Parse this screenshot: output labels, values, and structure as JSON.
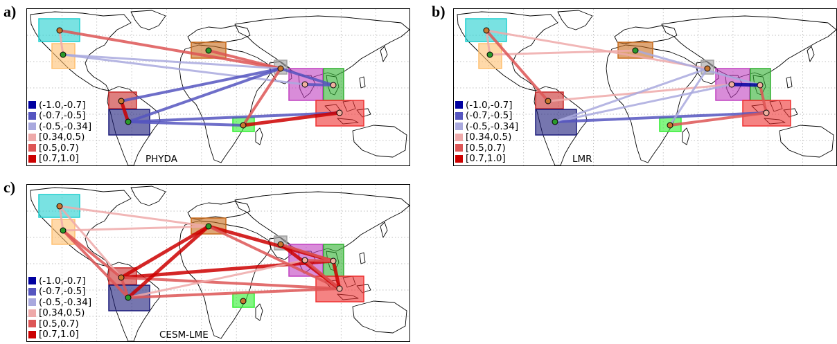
{
  "legend": [
    {
      "label": "(-1.0,-0.7]",
      "color": "#0000a0"
    },
    {
      "label": "(-0.7,-0.5]",
      "color": "#5555c0"
    },
    {
      "label": "(-0.5,-0.34]",
      "color": "#a9a9de"
    },
    {
      "label": "[0.34,0.5)",
      "color": "#eea9a9"
    },
    {
      "label": "[0.5,0.7)",
      "color": "#dd5555"
    },
    {
      "label": "[0.7,1.0]",
      "color": "#cc0000"
    }
  ],
  "regions": {
    "NWAmerica": {
      "fill": "#1fcfcf",
      "dot": "#c87830"
    },
    "SWUS": {
      "fill": "#ffc070",
      "dot": "#2a9a2a"
    },
    "Mediterranean": {
      "fill": "#c86a1a",
      "dot": "#2a9a2a"
    },
    "MiddleEast": {
      "fill": "#a0a0a0",
      "dot": "#c87830"
    },
    "India": {
      "fill": "#c040c0",
      "dot": "#f0b0a0"
    },
    "SEAsia": {
      "fill": "#30b030",
      "dot": "#f0b0a0"
    },
    "Indonesia": {
      "fill": "#ee3030",
      "dot": "#f0b0a0"
    },
    "EastAfrica": {
      "fill": "#30ee30",
      "dot": "#c87830"
    },
    "NSAmerica": {
      "fill": "#c82a2a",
      "dot": "#c87830"
    },
    "Amazon": {
      "fill": "#1a1a7a",
      "dot": "#2a9a2a"
    }
  },
  "panels": [
    {
      "letter": "a)",
      "dataset": "PHYDA",
      "links": [
        [
          "NWAmerica",
          "MiddleEast",
          5
        ],
        [
          "Mediterranean",
          "MiddleEast",
          5
        ],
        [
          "SWUS",
          "MiddleEast",
          3
        ],
        [
          "SWUS",
          "India",
          3
        ],
        [
          "NWAmerica",
          "SWUS",
          4
        ],
        [
          "NSAmerica",
          "Amazon",
          6
        ],
        [
          "Amazon",
          "MiddleEast",
          2
        ],
        [
          "NSAmerica",
          "MiddleEast",
          2
        ],
        [
          "Amazon",
          "Indonesia",
          2
        ],
        [
          "Amazon",
          "EastAfrica",
          2
        ],
        [
          "EastAfrica",
          "Indonesia",
          6
        ],
        [
          "EastAfrica",
          "MiddleEast",
          5
        ],
        [
          "MiddleEast",
          "SEAsia",
          2
        ],
        [
          "India",
          "SEAsia",
          2
        ]
      ]
    },
    {
      "letter": "b)",
      "dataset": "LMR",
      "links": [
        [
          "NWAmerica",
          "SWUS",
          4
        ],
        [
          "NWAmerica",
          "MiddleEast",
          4
        ],
        [
          "SWUS",
          "Mediterranean",
          4
        ],
        [
          "NWAmerica",
          "NSAmerica",
          5
        ],
        [
          "NSAmerica",
          "India",
          4
        ],
        [
          "Amazon",
          "India",
          3
        ],
        [
          "Amazon",
          "Indonesia",
          2
        ],
        [
          "Amazon",
          "MiddleEast",
          3
        ],
        [
          "MiddleEast",
          "EastAfrica",
          3
        ],
        [
          "Mediterranean",
          "SEAsia",
          3
        ],
        [
          "India",
          "SEAsia",
          1
        ],
        [
          "EastAfrica",
          "Indonesia",
          5
        ],
        [
          "SEAsia",
          "Indonesia",
          5
        ]
      ]
    },
    {
      "letter": "c)",
      "dataset": "CESM-LME",
      "links": [
        [
          "NWAmerica",
          "SWUS",
          4
        ],
        [
          "NWAmerica",
          "Mediterranean",
          4
        ],
        [
          "NWAmerica",
          "NSAmerica",
          4
        ],
        [
          "SWUS",
          "Mediterranean",
          4
        ],
        [
          "SWUS",
          "NSAmerica",
          5
        ],
        [
          "SWUS",
          "Amazon",
          5
        ],
        [
          "NSAmerica",
          "Mediterranean",
          6
        ],
        [
          "NSAmerica",
          "SEAsia",
          6
        ],
        [
          "NSAmerica",
          "Indonesia",
          5
        ],
        [
          "NSAmerica",
          "Amazon",
          5
        ],
        [
          "Amazon",
          "Mediterranean",
          6
        ],
        [
          "Amazon",
          "India",
          4
        ],
        [
          "Amazon",
          "Indonesia",
          5
        ],
        [
          "Mediterranean",
          "SEAsia",
          6
        ],
        [
          "Mediterranean",
          "Indonesia",
          5
        ],
        [
          "MiddleEast",
          "Indonesia",
          6
        ],
        [
          "MiddleEast",
          "SEAsia",
          5
        ],
        [
          "India",
          "Indonesia",
          5
        ],
        [
          "India",
          "SEAsia",
          5
        ],
        [
          "SEAsia",
          "Indonesia",
          6
        ]
      ]
    }
  ]
}
